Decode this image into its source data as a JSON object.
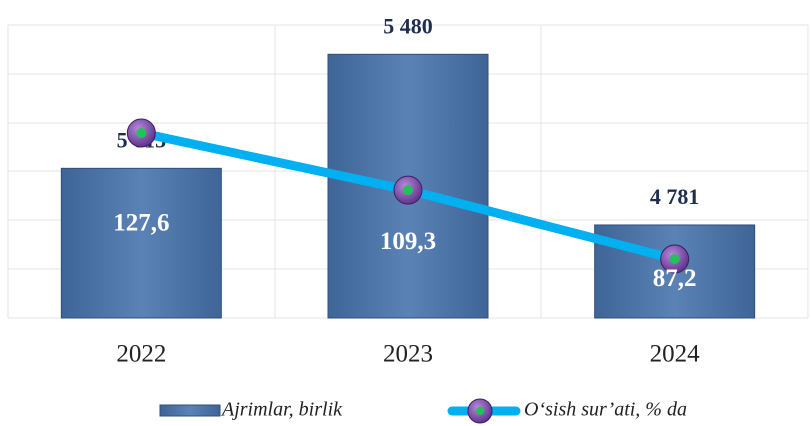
{
  "chart_data": {
    "type": "bar_line",
    "categories": [
      "2022",
      "2023",
      "2024"
    ],
    "series": [
      {
        "name": "Ajrimlar, birlik",
        "type": "bar",
        "color": "#4f76a8",
        "values": [
          5013,
          5480,
          4781
        ],
        "value_labels": [
          "5 013",
          "5 480",
          "4 781"
        ]
      },
      {
        "name": "O‘sish sur’ati, % da",
        "type": "line",
        "axis": "y2",
        "color": "#00b0f0",
        "values": [
          127.6,
          109.3,
          87.2
        ],
        "value_labels": [
          "127,6",
          "109,3",
          "87,2"
        ]
      }
    ],
    "ylim": [
      4400,
      5600
    ],
    "y2lim": [
      68.3,
      162.2
    ]
  }
}
